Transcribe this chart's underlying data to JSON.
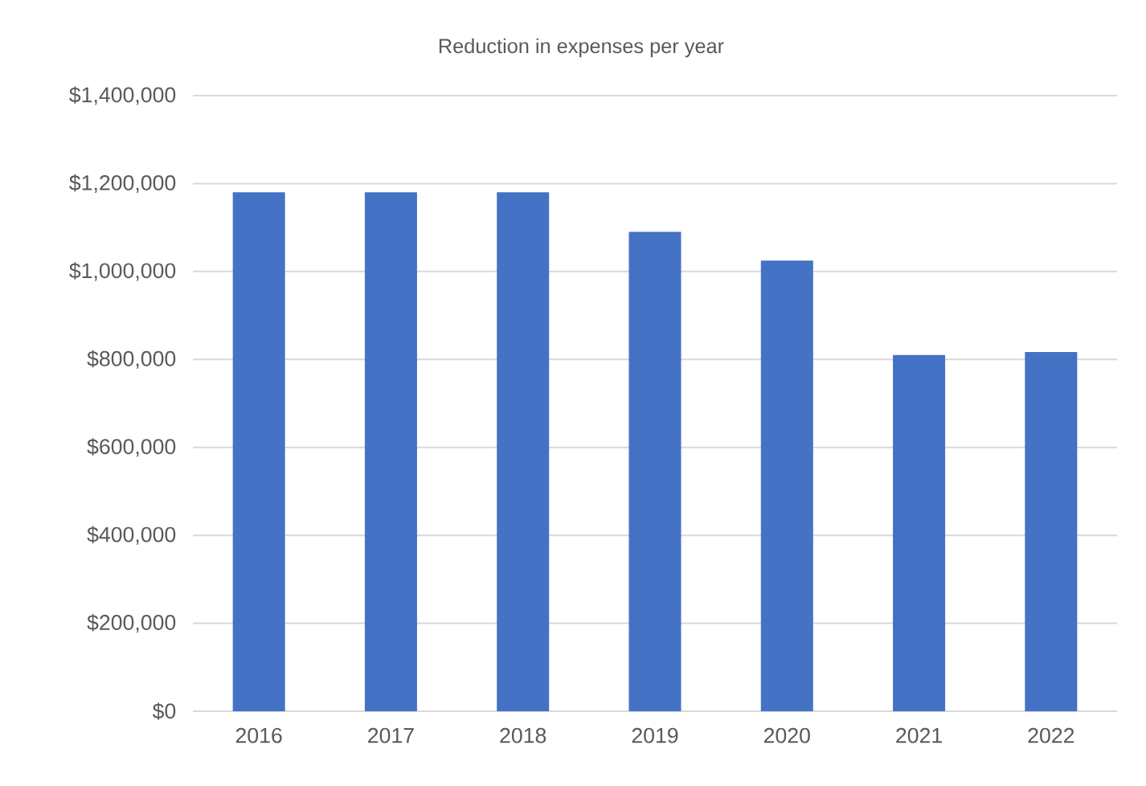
{
  "chart_data": {
    "type": "bar",
    "title": "Reduction in expenses per year",
    "categories": [
      "2016",
      "2017",
      "2018",
      "2019",
      "2020",
      "2021",
      "2022"
    ],
    "values": [
      1180000,
      1180000,
      1180000,
      1090000,
      1025000,
      810000,
      817000
    ],
    "color": "#4472c4",
    "ylim": [
      0,
      1400000
    ],
    "yticks": [
      {
        "value": 0,
        "label": "$0"
      },
      {
        "value": 200000,
        "label": "$200,000"
      },
      {
        "value": 400000,
        "label": "$400,000"
      },
      {
        "value": 600000,
        "label": "$600,000"
      },
      {
        "value": 800000,
        "label": "$800,000"
      },
      {
        "value": 1000000,
        "label": "$1,000,000"
      },
      {
        "value": 1200000,
        "label": "$1,200,000"
      },
      {
        "value": 1400000,
        "label": "$1,400,000"
      }
    ],
    "grid": "y"
  }
}
